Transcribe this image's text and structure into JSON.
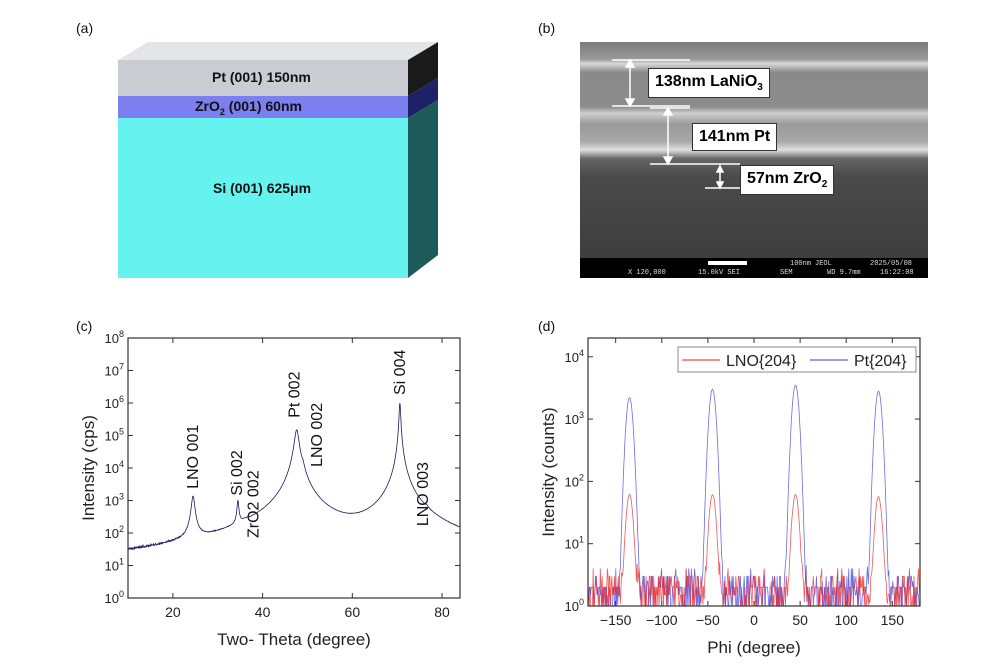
{
  "panels": {
    "a": {
      "label": "(a)",
      "layers": [
        {
          "text": "Pt (001) 150nm",
          "color": "#c9ccd3"
        },
        {
          "text": "ZrO",
          "sub": "2",
          "rest": " (001) 60nm",
          "color": "#7b7ff0"
        },
        {
          "text": "Si (001) 625μm",
          "color": "#66f2ee"
        }
      ]
    },
    "b": {
      "label": "(b)",
      "annotations": [
        {
          "text": "138nm LaNiO",
          "sub": "3"
        },
        {
          "text": "141nm Pt",
          "sub": ""
        },
        {
          "text": "57nm ZrO",
          "sub": "2"
        }
      ],
      "sem_bar": {
        "scale": "100nm",
        "brand": "JEOL",
        "date": "2025/05/08",
        "mag": "X 120,000",
        "kv": "15.0kV SEI",
        "mode": "SEM",
        "wd": "WD 9.7mm",
        "time": "16:22:08"
      }
    },
    "c": {
      "label": "(c)"
    },
    "d": {
      "label": "(d)"
    }
  },
  "chart_data": [
    {
      "type": "line",
      "panel": "c",
      "xlabel": "Two- Theta (degree)",
      "ylabel": "Intensity (cps)",
      "xlim": [
        10,
        84
      ],
      "ylim": [
        1,
        100000000
      ],
      "yscale": "log",
      "xticks": [
        20,
        40,
        60,
        80
      ],
      "yticks": [
        "10^0",
        "10^1",
        "10^2",
        "10^3",
        "10^4",
        "10^5",
        "10^6",
        "10^7",
        "10^8"
      ],
      "color": "#1a1a5e",
      "background_level": [
        1,
        8
      ],
      "peaks": [
        {
          "label": "LNO 001",
          "x": 24.5,
          "y": 1300,
          "width": 0.35
        },
        {
          "label": "Si 002",
          "x": 34.5,
          "y": 800,
          "width": 0.2
        },
        {
          "label": "ZrO2 002",
          "x": 36.2,
          "y": 30,
          "width": 0.8
        },
        {
          "label": "Pt 002",
          "x": 47.6,
          "y": 150000,
          "width": 0.45
        },
        {
          "label": "LNO 002",
          "x": 49.0,
          "y": 4000,
          "width": 0.35
        },
        {
          "label": "Si 004",
          "x": 70.6,
          "y": 1000000,
          "width": 0.15
        },
        {
          "label": "LNO 003",
          "x": 76.6,
          "y": 80,
          "width": 0.4
        }
      ]
    },
    {
      "type": "line",
      "panel": "d",
      "xlabel": "Phi (degree)",
      "ylabel": "Intensity (counts)",
      "xlim": [
        -180,
        180
      ],
      "ylim": [
        1,
        20000
      ],
      "yscale": "log",
      "xticks": [
        -150,
        -100,
        -50,
        0,
        50,
        100,
        150
      ],
      "yticks": [
        "10^0",
        "10^1",
        "10^2",
        "10^3",
        "10^4"
      ],
      "legend": "top-right",
      "series": [
        {
          "name": "LNO{204}",
          "color": "#ee2222",
          "peaks": [
            {
              "x": -135,
              "y": 60
            },
            {
              "x": -45,
              "y": 60
            },
            {
              "x": 45,
              "y": 60
            },
            {
              "x": 135,
              "y": 55
            }
          ],
          "width": 3
        },
        {
          "name": "Pt{204}",
          "color": "#3a3ae0",
          "peaks": [
            {
              "x": -135,
              "y": 2200
            },
            {
              "x": -45,
              "y": 3000
            },
            {
              "x": 45,
              "y": 3500
            },
            {
              "x": 135,
              "y": 2800
            }
          ],
          "width": 3
        }
      ]
    }
  ]
}
